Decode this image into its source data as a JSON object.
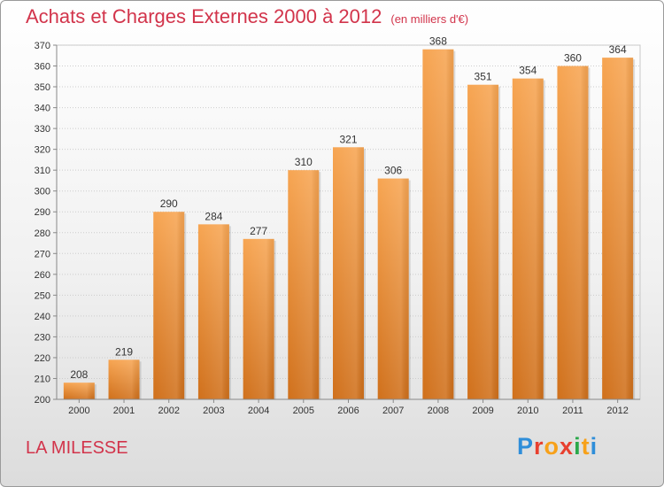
{
  "chart_data": {
    "type": "bar",
    "title": "Achats et Charges Externes 2000 à 2012",
    "subtitle": "(en milliers d'€)",
    "categories": [
      "2000",
      "2001",
      "2002",
      "2003",
      "2004",
      "2005",
      "2006",
      "2007",
      "2008",
      "2009",
      "2010",
      "2011",
      "2012"
    ],
    "values": [
      208,
      219,
      290,
      284,
      277,
      310,
      321,
      306,
      368,
      351,
      354,
      360,
      364
    ],
    "ylim": [
      200,
      370
    ],
    "yticks": [
      200,
      210,
      220,
      230,
      240,
      250,
      260,
      270,
      280,
      290,
      300,
      310,
      320,
      330,
      340,
      350,
      360,
      370
    ],
    "grid": true,
    "bar_color": "#f0963c"
  },
  "footer": {
    "place": "LA MILESSE",
    "logo_letters": [
      "P",
      "r",
      "o",
      "x",
      "i",
      "t",
      "i"
    ]
  }
}
